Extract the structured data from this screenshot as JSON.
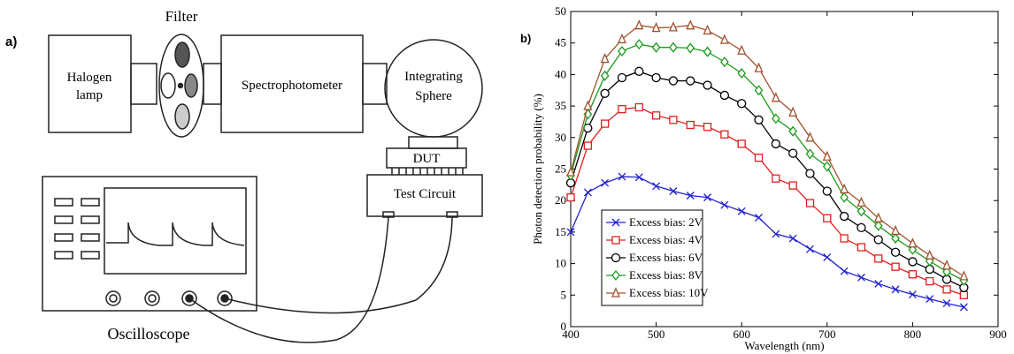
{
  "diagram": {
    "panel_label": "a)",
    "filter_label": "Filter",
    "halogen": [
      "Halogen",
      "lamp"
    ],
    "spectrophotometer": "Spectrophotometer",
    "sphere": [
      "Integrating",
      "Sphere"
    ],
    "dut": "DUT",
    "test_circuit": "Test Circuit",
    "oscilloscope": "Oscilloscope"
  },
  "chart_data": {
    "type": "line",
    "panel_label": "b)",
    "x_label": "Wavelength (nm)",
    "y_label": "Photon detection probability (%)",
    "x": [
      400,
      420,
      440,
      460,
      480,
      500,
      520,
      540,
      560,
      580,
      600,
      620,
      640,
      660,
      680,
      700,
      720,
      740,
      760,
      780,
      800,
      820,
      840,
      860
    ],
    "series": [
      {
        "name": "Excess bias: 2V",
        "color": "#2020d0",
        "marker": "x",
        "values": [
          15,
          21.3,
          22.8,
          23.8,
          23.7,
          22.3,
          21.5,
          20.8,
          20.5,
          19.3,
          18.3,
          17.3,
          14.7,
          14,
          12.3,
          11,
          8.8,
          7.8,
          6.8,
          5.9,
          5.1,
          4.4,
          3.7,
          3.1
        ]
      },
      {
        "name": "Excess bias: 4V",
        "color": "#e02020",
        "marker": "square",
        "values": [
          20.5,
          28.7,
          32.2,
          34.5,
          34.8,
          33.5,
          32.8,
          32,
          31.7,
          30.5,
          29,
          26.8,
          23.5,
          22.4,
          19.6,
          17.2,
          14,
          12.6,
          10.8,
          9.5,
          8.3,
          7.2,
          5.9,
          5
        ]
      },
      {
        "name": "Excess bias: 6V",
        "color": "#000000",
        "marker": "circle",
        "values": [
          22.8,
          31.5,
          37,
          39.5,
          40.5,
          39.5,
          39,
          39,
          38.3,
          36.7,
          35.4,
          32.8,
          29,
          27.5,
          24.3,
          21.5,
          17.5,
          15.7,
          13.8,
          11.8,
          10.3,
          9.1,
          7.5,
          6.2
        ]
      },
      {
        "name": "Excess bias: 8V",
        "color": "#1a9a1a",
        "marker": "diamond",
        "values": [
          24,
          33.7,
          39.8,
          43.7,
          44.8,
          44.3,
          44.3,
          44.2,
          43.6,
          42,
          40.2,
          37.5,
          33,
          31,
          27.4,
          25.4,
          20.5,
          18.3,
          16,
          14,
          12.2,
          10.4,
          8.7,
          7.3
        ]
      },
      {
        "name": "Excess bias: 10V",
        "color": "#a0522d",
        "marker": "triangle",
        "values": [
          24.5,
          35,
          42.5,
          45.6,
          47.8,
          47.4,
          47.5,
          47.8,
          47,
          45.5,
          43.8,
          41,
          36.3,
          34,
          30,
          27,
          21.8,
          19.7,
          17.2,
          15.2,
          13.2,
          11.3,
          9.7,
          8
        ]
      }
    ],
    "xlim": [
      400,
      900
    ],
    "xticks": [
      400,
      500,
      600,
      700,
      800,
      900
    ],
    "ylim": [
      0,
      50
    ],
    "yticks": [
      0,
      5,
      10,
      15,
      20,
      25,
      30,
      35,
      40,
      45,
      50
    ],
    "grid": false,
    "legend": "lower left"
  }
}
